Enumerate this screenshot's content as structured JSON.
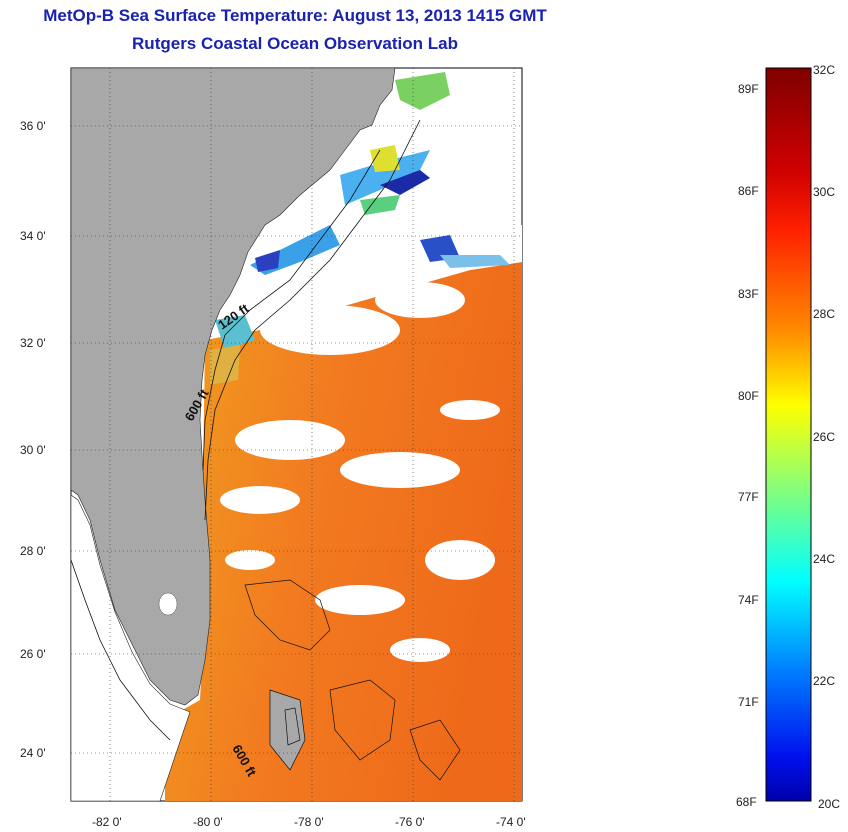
{
  "title": "MetOp-B Sea Surface Temperature:  August 13, 2013 1415 GMT",
  "subtitle": "Rutgers Coastal Ocean Observation Lab",
  "map": {
    "lat_ticks": [
      "36 0'",
      "34 0'",
      "32 0'",
      "30 0'",
      "28 0'",
      "26 0'",
      "24 0'"
    ],
    "lon_ticks": [
      "-82 0'",
      "-80 0'",
      "-78 0'",
      "-76 0'",
      "-74 0'"
    ],
    "land_color": "#a8a8a8",
    "cloud_color": "#ffffff",
    "contours": [
      "120 ft",
      "600 ft",
      "600 ft"
    ]
  },
  "colorbar": {
    "fahrenheit": [
      "89F",
      "86F",
      "83F",
      "80F",
      "77F",
      "74F",
      "71F",
      "68F"
    ],
    "celsius": [
      "32C",
      "30C",
      "28C",
      "26C",
      "24C",
      "22C",
      "20C"
    ],
    "colors": [
      "#7f0000",
      "#ff0000",
      "#ff8c00",
      "#ffff00",
      "#7fff7f",
      "#00ffff",
      "#0080ff",
      "#0000aa"
    ]
  }
}
